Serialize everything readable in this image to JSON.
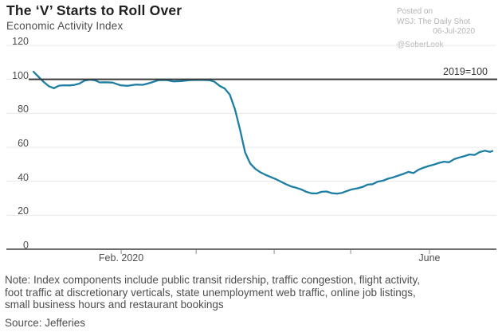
{
  "header": {
    "title": "The ‘V’ Starts to Roll Over",
    "subtitle": "Economic Activity Index"
  },
  "meta": {
    "posted_on": "Posted on",
    "publication": "WSJ: The Daily Shot",
    "date": "06-Jul-2020",
    "handle": "@SoberLook"
  },
  "footer": {
    "note": "Note: Index components include public transit ridership, traffic congestion, flight activity, foot traffic at discretionary verticals, state unemployment web traffic, online job listings, small business hours and restaurant bookings",
    "source": "Source: Jefferies"
  },
  "colors": {
    "line": "#1d7ea3",
    "grid": "#e8e8e8",
    "axis": "#3f3f3f",
    "reference": "#383838",
    "tick": "#8c8c8c"
  },
  "chart_data": {
    "type": "line",
    "title": "The ‘V’ Starts to Roll Over",
    "subtitle": "Economic Activity Index",
    "ylabel": "",
    "ylim": [
      0,
      120
    ],
    "yticks": [
      0,
      20,
      40,
      60,
      80,
      100,
      120
    ],
    "grid": "horizontal",
    "legend": "none",
    "reference_line": {
      "value": 100,
      "label": "2019=100"
    },
    "x_unit": "days from series start (early Jan 2020 through late June 2020)",
    "x_range": [
      0,
      180
    ],
    "x_ticks": [
      {
        "pos": 34.4,
        "label": "Feb. 2020"
      },
      {
        "pos": 63.8,
        "label": ""
      },
      {
        "pos": 94.4,
        "label": ""
      },
      {
        "pos": 124.4,
        "label": ""
      },
      {
        "pos": 155.3,
        "label": "June"
      }
    ],
    "series": [
      {
        "name": "Economic Activity Index (2019=100)",
        "color": "#1d7ea3",
        "x": [
          0,
          2,
          4,
          6,
          8,
          10,
          12,
          14,
          16,
          18,
          20,
          22,
          24,
          26,
          28,
          31,
          34,
          37,
          40,
          43,
          46,
          49,
          52,
          55,
          58,
          61,
          64,
          67,
          69,
          71,
          73,
          75,
          77,
          79,
          81,
          83,
          85,
          87,
          89,
          91,
          93,
          95,
          97,
          99,
          101,
          103,
          105,
          107,
          109,
          111,
          113,
          115,
          117,
          119,
          121,
          123,
          125,
          127,
          129,
          131,
          133,
          135,
          137,
          139,
          141,
          143,
          145,
          147,
          149,
          151,
          153,
          155,
          157,
          159,
          161,
          163,
          165,
          167,
          169,
          171,
          173,
          175,
          177,
          179,
          180
        ],
        "y": [
          104.5,
          101.5,
          98.5,
          96.0,
          94.8,
          96.3,
          96.5,
          96.4,
          96.7,
          97.5,
          99.3,
          99.8,
          99.5,
          98.2,
          98.3,
          98.1,
          96.5,
          96.2,
          96.9,
          96.8,
          98.0,
          99.5,
          99.6,
          98.8,
          99.0,
          99.5,
          99.7,
          99.6,
          99.5,
          98.6,
          96.2,
          94.6,
          91.0,
          82.5,
          70.5,
          57.0,
          50.5,
          47.3,
          45.3,
          43.8,
          42.5,
          41.3,
          39.8,
          38.3,
          37.0,
          36.2,
          35.2,
          33.8,
          32.9,
          32.8,
          33.8,
          34.0,
          33.0,
          32.7,
          33.2,
          34.3,
          35.3,
          35.8,
          36.6,
          38.0,
          38.3,
          39.8,
          40.3,
          41.5,
          42.3,
          43.3,
          44.3,
          45.5,
          44.8,
          46.8,
          48.0,
          49.0,
          49.8,
          50.8,
          51.5,
          51.2,
          53.0,
          54.0,
          54.8,
          55.8,
          55.5,
          57.2,
          58.0,
          57.3,
          57.8
        ]
      }
    ]
  }
}
